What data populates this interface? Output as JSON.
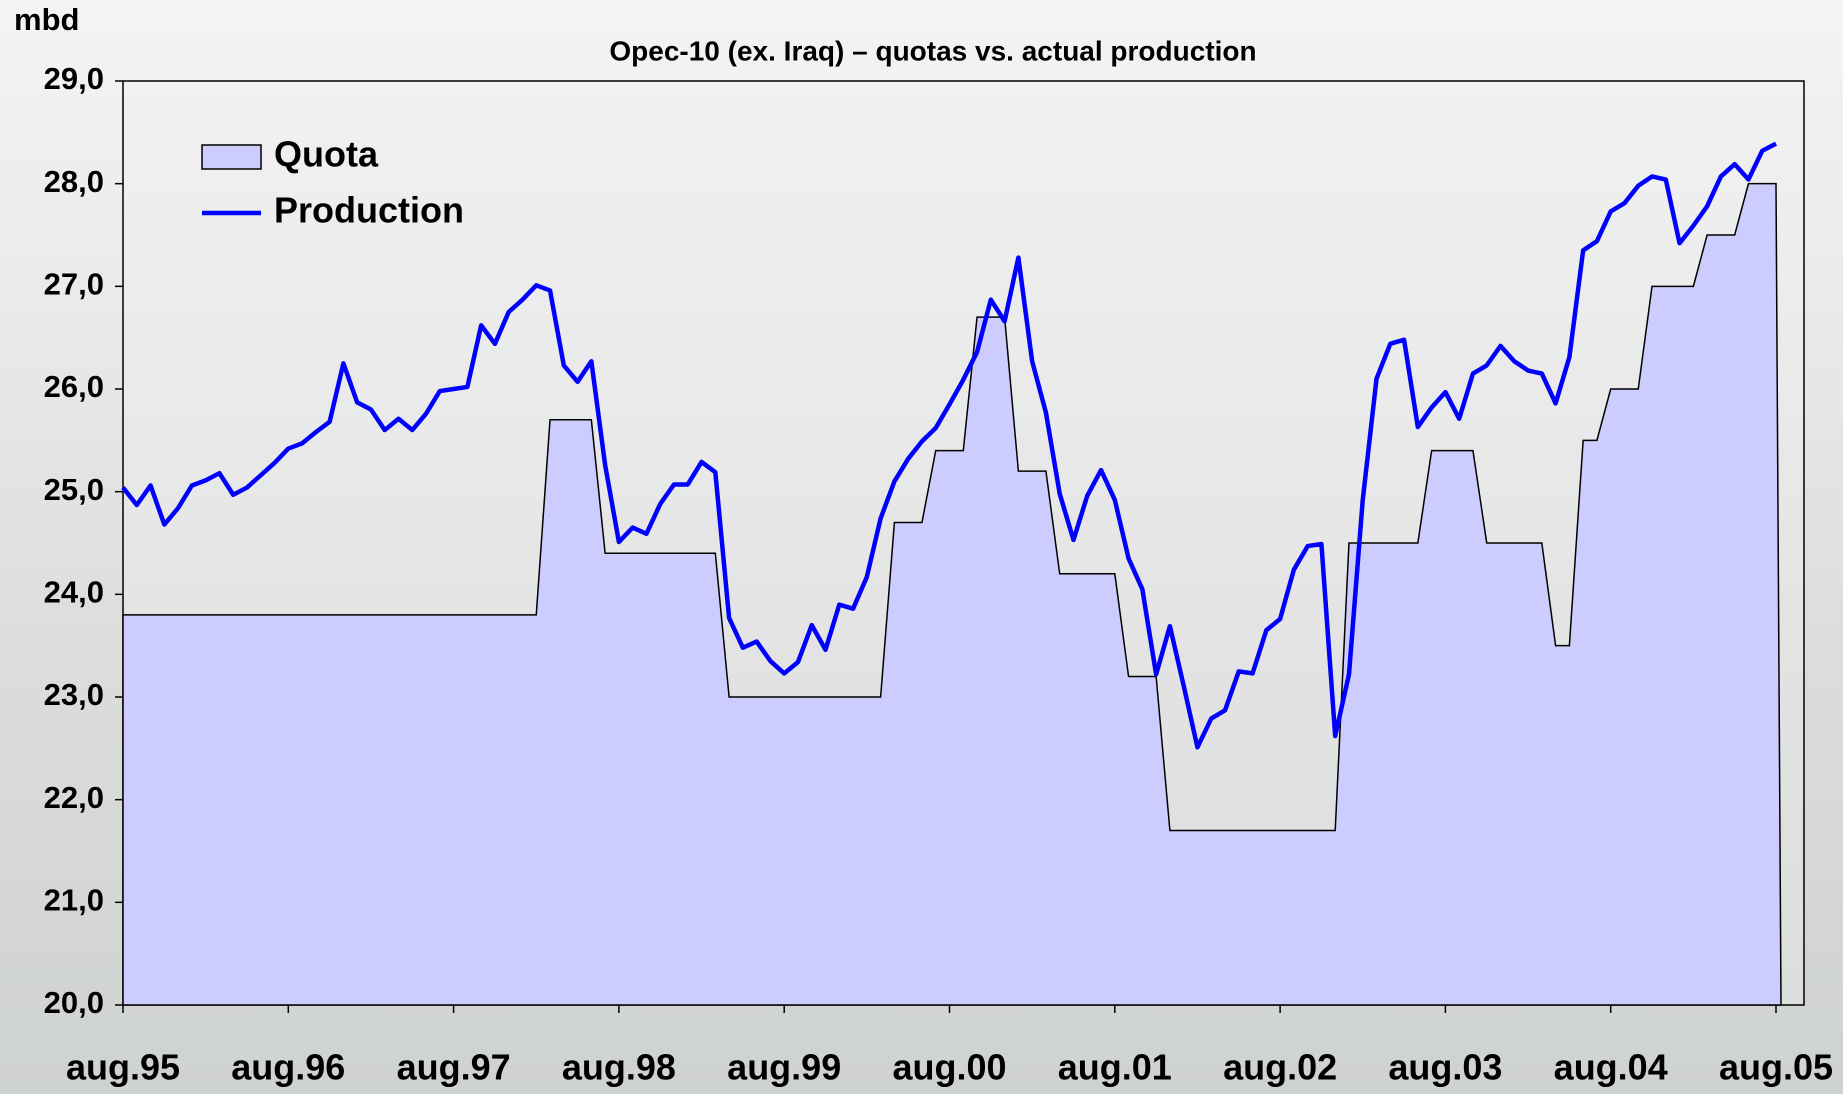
{
  "chart_data": {
    "type": "line",
    "title": "Opec-10 (ex. Iraq) – quotas vs. actual production",
    "y_label": "mbd",
    "categories": [
      "aug.95",
      null,
      null,
      null,
      null,
      null,
      null,
      null,
      null,
      null,
      null,
      null,
      "aug.96",
      null,
      null,
      null,
      null,
      null,
      null,
      null,
      null,
      null,
      null,
      null,
      "aug.97",
      null,
      null,
      null,
      null,
      null,
      null,
      null,
      null,
      null,
      null,
      null,
      "aug.98",
      null,
      null,
      null,
      null,
      null,
      null,
      null,
      null,
      null,
      null,
      null,
      "aug.99",
      null,
      null,
      null,
      null,
      null,
      null,
      null,
      null,
      null,
      null,
      null,
      "aug.00",
      null,
      null,
      null,
      null,
      null,
      null,
      null,
      null,
      null,
      null,
      null,
      "aug.01",
      null,
      null,
      null,
      null,
      null,
      null,
      null,
      null,
      null,
      null,
      null,
      "aug.02",
      null,
      null,
      null,
      null,
      null,
      null,
      null,
      null,
      null,
      null,
      null,
      "aug.03",
      null,
      null,
      null,
      null,
      null,
      null,
      null,
      null,
      null,
      null,
      null,
      "aug.04",
      null,
      null,
      null,
      null,
      null,
      null,
      null,
      null,
      null,
      null,
      null,
      "aug.05"
    ],
    "series": [
      {
        "name": "Quota",
        "style": "area",
        "color": "#ccccff",
        "line_color": "#000000",
        "values": [
          23.8,
          23.8,
          23.8,
          23.8,
          23.8,
          23.8,
          23.8,
          23.8,
          23.8,
          23.8,
          23.8,
          23.8,
          23.8,
          23.8,
          23.8,
          23.8,
          23.8,
          23.8,
          23.8,
          23.8,
          23.8,
          23.8,
          23.8,
          23.8,
          23.8,
          23.8,
          23.8,
          23.8,
          23.8,
          23.8,
          23.8,
          25.7,
          25.7,
          25.7,
          25.7,
          24.4,
          24.4,
          24.4,
          24.4,
          24.4,
          24.4,
          24.4,
          24.4,
          24.4,
          23.0,
          23.0,
          23.0,
          23.0,
          23.0,
          23.0,
          23.0,
          23.0,
          23.0,
          23.0,
          23.0,
          23.0,
          24.7,
          24.7,
          24.7,
          25.4,
          25.4,
          25.4,
          26.7,
          26.7,
          26.7,
          25.2,
          25.2,
          25.2,
          24.2,
          24.2,
          24.2,
          24.2,
          24.2,
          23.2,
          23.2,
          23.2,
          21.7,
          21.7,
          21.7,
          21.7,
          21.7,
          21.7,
          21.7,
          21.7,
          21.7,
          21.7,
          21.7,
          21.7,
          21.7,
          24.5,
          24.5,
          24.5,
          24.5,
          24.5,
          24.5,
          25.4,
          25.4,
          25.4,
          25.4,
          24.5,
          24.5,
          24.5,
          24.5,
          24.5,
          23.5,
          23.5,
          25.5,
          25.5,
          26.0,
          26.0,
          26.0,
          27.0,
          27.0,
          27.0,
          27.0,
          27.5,
          27.5,
          27.5,
          28.0,
          28.0,
          28.0
        ]
      },
      {
        "name": "Production",
        "style": "line",
        "color": "#0000ff",
        "values": [
          25.04,
          24.87,
          25.06,
          24.68,
          24.84,
          25.06,
          25.11,
          25.18,
          24.97,
          25.04,
          25.16,
          25.28,
          25.42,
          25.47,
          25.58,
          25.68,
          26.25,
          25.87,
          25.8,
          25.6,
          25.71,
          25.6,
          25.76,
          25.98,
          26.0,
          26.02,
          26.62,
          26.44,
          26.75,
          26.87,
          27.01,
          26.96,
          26.23,
          26.07,
          26.27,
          25.26,
          24.51,
          24.65,
          24.59,
          24.88,
          25.07,
          25.07,
          25.29,
          25.19,
          23.77,
          23.48,
          23.54,
          23.35,
          23.23,
          23.34,
          23.7,
          23.46,
          23.9,
          23.86,
          24.17,
          24.74,
          25.1,
          25.32,
          25.49,
          25.62,
          25.85,
          26.09,
          26.36,
          26.87,
          26.66,
          27.28,
          26.27,
          25.77,
          24.98,
          24.53,
          24.96,
          25.21,
          24.92,
          24.35,
          24.05,
          23.22,
          23.69,
          23.11,
          22.51,
          22.79,
          22.87,
          23.25,
          23.23,
          23.65,
          23.76,
          24.24,
          24.47,
          24.49,
          22.62,
          23.22,
          24.92,
          26.1,
          26.44,
          26.48,
          25.63,
          25.82,
          25.97,
          25.71,
          26.15,
          26.23,
          26.42,
          26.27,
          26.18,
          26.15,
          25.86,
          26.31,
          27.35,
          27.44,
          27.73,
          27.81,
          27.98,
          28.07,
          28.04,
          27.42,
          27.59,
          27.78,
          28.07,
          28.19,
          28.04,
          28.32,
          28.39
        ]
      }
    ],
    "ylim": [
      20,
      29
    ],
    "yticks": [
      {
        "value": 20,
        "label": "20,0"
      },
      {
        "value": 21,
        "label": "21,0"
      },
      {
        "value": 22,
        "label": "22,0"
      },
      {
        "value": 23,
        "label": "23,0"
      },
      {
        "value": 24,
        "label": "24,0"
      },
      {
        "value": 25,
        "label": "25,0"
      },
      {
        "value": 26,
        "label": "26,0"
      },
      {
        "value": 27,
        "label": "27,0"
      },
      {
        "value": 28,
        "label": "28,0"
      },
      {
        "value": 29,
        "label": "29,0"
      }
    ],
    "grid": false,
    "legend": "top-left"
  }
}
